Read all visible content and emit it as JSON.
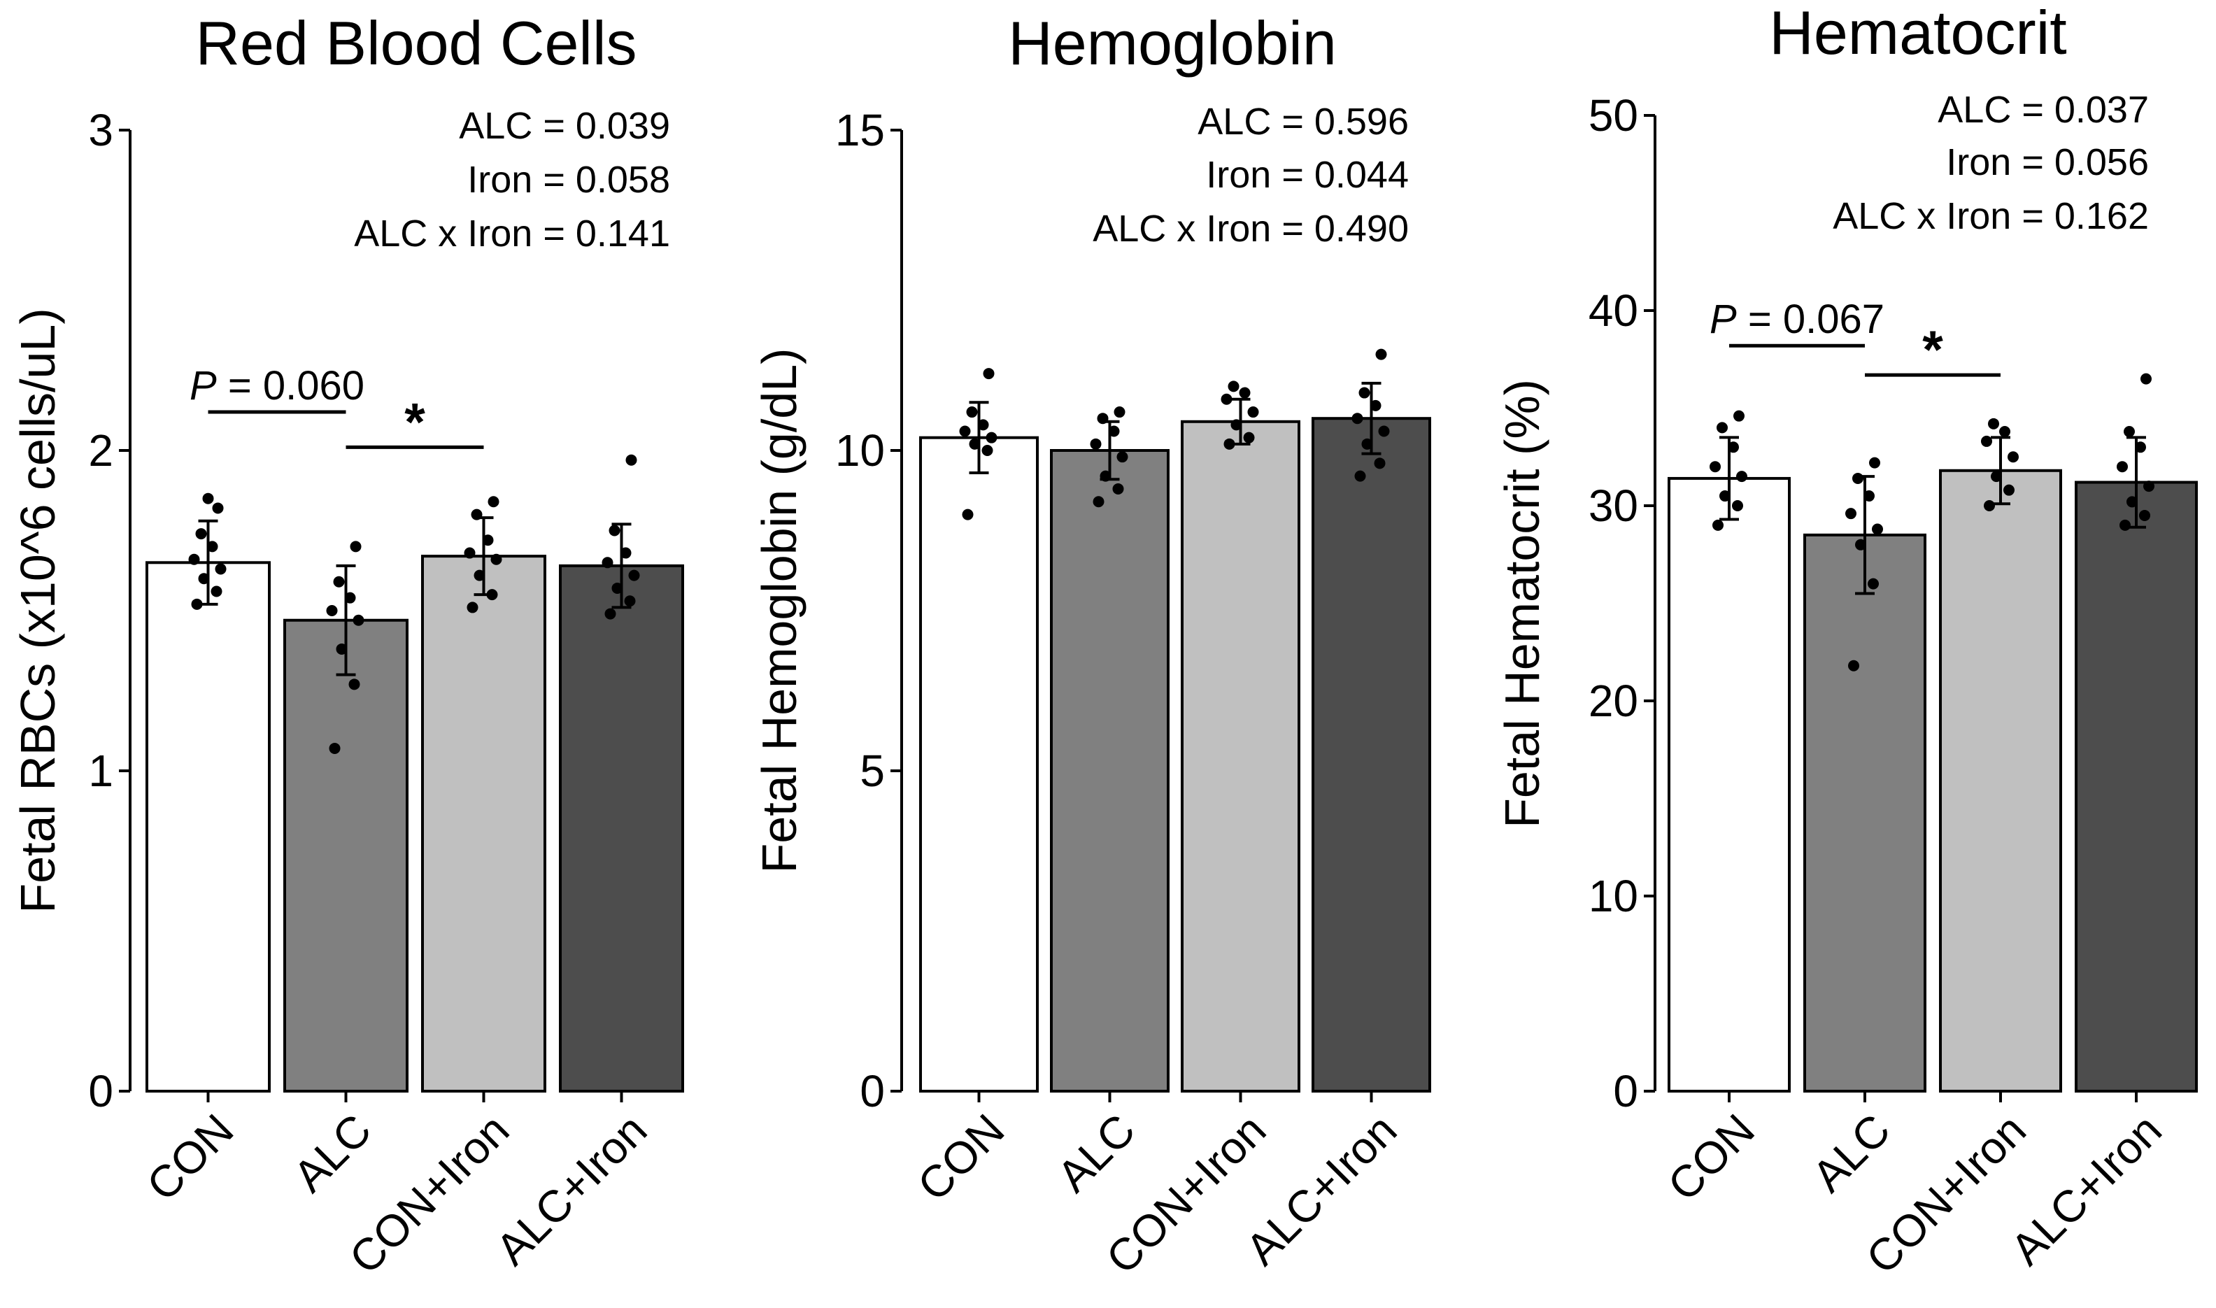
{
  "chart_data": [
    {
      "type": "bar",
      "title": "Red Blood Cells",
      "ylabel": "Fetal RBCs (x10^6 cells/uL)",
      "ylim": [
        0,
        3
      ],
      "yticks": [
        0,
        1,
        2,
        3
      ],
      "categories": [
        "CON",
        "ALC",
        "CON+Iron",
        "ALC+Iron"
      ],
      "values": [
        1.65,
        1.47,
        1.67,
        1.64
      ],
      "errors": [
        0.13,
        0.17,
        0.12,
        0.13
      ],
      "points": [
        [
          1.52,
          1.56,
          1.6,
          1.63,
          1.66,
          1.7,
          1.74,
          1.82,
          1.85
        ],
        [
          1.07,
          1.27,
          1.38,
          1.47,
          1.5,
          1.54,
          1.59,
          1.7
        ],
        [
          1.51,
          1.55,
          1.61,
          1.66,
          1.68,
          1.72,
          1.8,
          1.84
        ],
        [
          1.49,
          1.53,
          1.57,
          1.61,
          1.65,
          1.68,
          1.75,
          1.97
        ]
      ],
      "stats": [
        "ALC = 0.039",
        "Iron = 0.058",
        "ALC x Iron = 0.141"
      ],
      "comparisons": [
        {
          "from": 0,
          "to": 1,
          "height": 2.12,
          "label_italic": "P",
          "label_rest": " = 0.060"
        },
        {
          "from": 1,
          "to": 2,
          "height": 2.01,
          "star": "*"
        }
      ],
      "colors": [
        "#ffffff",
        "#808080",
        "#c0c0c0",
        "#4d4d4d"
      ]
    },
    {
      "type": "bar",
      "title": "Hemoglobin",
      "ylabel": "Fetal Hemoglobin (g/dL)",
      "ylim": [
        0,
        15
      ],
      "yticks": [
        0,
        5,
        10,
        15
      ],
      "categories": [
        "CON",
        "ALC",
        "CON+Iron",
        "ALC+Iron"
      ],
      "values": [
        10.2,
        10.0,
        10.45,
        10.5
      ],
      "errors": [
        0.55,
        0.45,
        0.35,
        0.55
      ],
      "points": [
        [
          9.0,
          10.0,
          10.1,
          10.2,
          10.3,
          10.4,
          10.6,
          11.2
        ],
        [
          9.2,
          9.4,
          9.6,
          9.9,
          10.1,
          10.3,
          10.5,
          10.6
        ],
        [
          10.1,
          10.2,
          10.4,
          10.6,
          10.8,
          10.9,
          11.0
        ],
        [
          9.6,
          9.8,
          10.1,
          10.3,
          10.5,
          10.7,
          10.9,
          11.5
        ]
      ],
      "stats": [
        "ALC = 0.596",
        "Iron = 0.044",
        "ALC x Iron = 0.490"
      ],
      "comparisons": [],
      "colors": [
        "#ffffff",
        "#808080",
        "#c0c0c0",
        "#4d4d4d"
      ]
    },
    {
      "type": "bar",
      "title": "Hematocrit",
      "ylabel": "Fetal Hematocrit (%)",
      "ylim": [
        0,
        50
      ],
      "yticks": [
        0,
        10,
        20,
        30,
        40,
        50
      ],
      "categories": [
        "CON",
        "ALC",
        "CON+Iron",
        "ALC+Iron"
      ],
      "values": [
        31.4,
        28.5,
        31.8,
        31.2
      ],
      "errors": [
        2.1,
        3.0,
        1.7,
        2.3
      ],
      "points": [
        [
          29.0,
          30.0,
          30.5,
          31.5,
          32.0,
          33.0,
          34.0,
          34.6
        ],
        [
          21.8,
          26.0,
          28.0,
          28.8,
          29.6,
          30.5,
          31.4,
          32.2
        ],
        [
          30.0,
          30.8,
          31.5,
          32.5,
          33.3,
          33.8,
          34.2
        ],
        [
          29.0,
          29.5,
          30.2,
          31.0,
          32.0,
          33.0,
          33.8,
          36.5
        ]
      ],
      "stats": [
        "ALC = 0.037",
        "Iron = 0.056",
        "ALC x Iron = 0.162"
      ],
      "comparisons": [
        {
          "from": 0,
          "to": 1,
          "height": 38.2,
          "label_italic": "P",
          "label_rest": " = 0.067"
        },
        {
          "from": 1,
          "to": 2,
          "height": 36.7,
          "star": "*"
        }
      ],
      "colors": [
        "#ffffff",
        "#808080",
        "#c0c0c0",
        "#4d4d4d"
      ]
    }
  ]
}
